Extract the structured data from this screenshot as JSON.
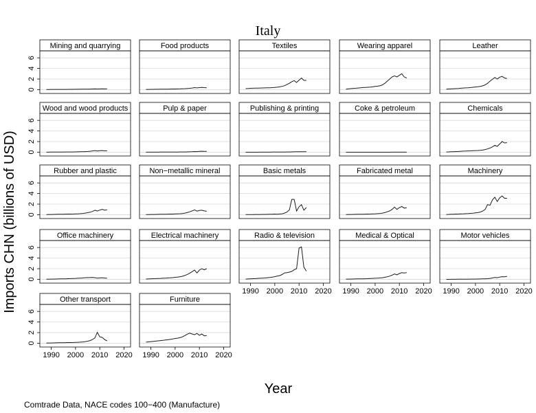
{
  "figure": {
    "title": "Italy",
    "ylabel": "Imports CHN (billions of USD)",
    "xlabel": "Year",
    "note": "Comtrade Data, NACE codes 100−400 (Manufacture)"
  },
  "chart_data": {
    "type": "line",
    "layout": "small-multiples",
    "title": "Italy",
    "xlabel": "Year",
    "ylabel": "Imports CHN (billions of USD)",
    "xlim": [
      1987,
      2021
    ],
    "ylim": [
      -0.2,
      6.8
    ],
    "xticks": [
      1990,
      2000,
      2010,
      2020
    ],
    "yticks": [
      0,
      2,
      4,
      6
    ],
    "grid": true,
    "x": [
      1988,
      1989,
      1990,
      1991,
      1992,
      1993,
      1994,
      1995,
      1996,
      1997,
      1998,
      1999,
      2000,
      2001,
      2002,
      2003,
      2004,
      2005,
      2006,
      2007,
      2008,
      2009,
      2010,
      2011,
      2012,
      2013
    ],
    "panels": [
      {
        "name": "Mining and quarrying",
        "values": [
          0.03,
          0.03,
          0.04,
          0.04,
          0.04,
          0.04,
          0.05,
          0.05,
          0.05,
          0.06,
          0.06,
          0.06,
          0.07,
          0.07,
          0.08,
          0.08,
          0.09,
          0.1,
          0.11,
          0.12,
          0.14,
          0.12,
          0.14,
          0.15,
          0.14,
          0.14
        ]
      },
      {
        "name": "Food products",
        "values": [
          0.05,
          0.05,
          0.06,
          0.06,
          0.07,
          0.07,
          0.08,
          0.09,
          0.09,
          0.1,
          0.11,
          0.12,
          0.13,
          0.14,
          0.15,
          0.17,
          0.19,
          0.22,
          0.26,
          0.3,
          0.38,
          0.33,
          0.38,
          0.42,
          0.38,
          0.36
        ]
      },
      {
        "name": "Textiles",
        "values": [
          0.2,
          0.22,
          0.25,
          0.27,
          0.28,
          0.28,
          0.3,
          0.32,
          0.33,
          0.35,
          0.36,
          0.38,
          0.42,
          0.46,
          0.52,
          0.62,
          0.75,
          0.95,
          1.2,
          1.5,
          1.7,
          1.35,
          1.8,
          2.2,
          1.75,
          1.75
        ]
      },
      {
        "name": "Wearing apparel",
        "values": [
          0.1,
          0.15,
          0.2,
          0.24,
          0.27,
          0.3,
          0.35,
          0.4,
          0.42,
          0.45,
          0.48,
          0.52,
          0.6,
          0.65,
          0.72,
          0.9,
          1.2,
          1.6,
          2.0,
          2.4,
          2.6,
          2.4,
          2.7,
          3.0,
          2.4,
          2.2
        ]
      },
      {
        "name": "Leather",
        "values": [
          0.1,
          0.12,
          0.15,
          0.18,
          0.2,
          0.23,
          0.27,
          0.3,
          0.33,
          0.36,
          0.4,
          0.45,
          0.5,
          0.55,
          0.62,
          0.72,
          0.9,
          1.2,
          1.6,
          1.95,
          2.3,
          2.0,
          2.35,
          2.5,
          2.2,
          2.1
        ]
      },
      {
        "name": "Wood and wood products",
        "values": [
          0.01,
          0.01,
          0.02,
          0.02,
          0.02,
          0.02,
          0.03,
          0.03,
          0.04,
          0.04,
          0.05,
          0.05,
          0.06,
          0.07,
          0.08,
          0.09,
          0.11,
          0.14,
          0.18,
          0.24,
          0.3,
          0.22,
          0.28,
          0.3,
          0.25,
          0.25
        ]
      },
      {
        "name": "Pulp & paper",
        "values": [
          0.01,
          0.01,
          0.01,
          0.01,
          0.01,
          0.01,
          0.02,
          0.02,
          0.02,
          0.02,
          0.02,
          0.03,
          0.03,
          0.03,
          0.04,
          0.04,
          0.05,
          0.06,
          0.07,
          0.09,
          0.12,
          0.11,
          0.15,
          0.17,
          0.15,
          0.15
        ]
      },
      {
        "name": "Publishing & printing",
        "values": [
          0.0,
          0.0,
          0.0,
          0.0,
          0.0,
          0.0,
          0.01,
          0.01,
          0.01,
          0.01,
          0.01,
          0.02,
          0.02,
          0.02,
          0.02,
          0.03,
          0.03,
          0.04,
          0.05,
          0.06,
          0.07,
          0.07,
          0.08,
          0.09,
          0.09,
          0.09
        ]
      },
      {
        "name": "Coke & petroleum",
        "values": [
          0.0,
          0.0,
          0.0,
          0.0,
          0.0,
          0.0,
          0.0,
          0.0,
          0.0,
          0.0,
          0.0,
          0.0,
          0.0,
          0.0,
          0.0,
          0.0,
          0.0,
          0.0,
          0.0,
          0.01,
          0.01,
          0.01,
          0.01,
          0.01,
          0.01,
          0.01
        ]
      },
      {
        "name": "Chemicals",
        "values": [
          0.05,
          0.06,
          0.08,
          0.1,
          0.12,
          0.14,
          0.17,
          0.2,
          0.22,
          0.24,
          0.26,
          0.28,
          0.3,
          0.32,
          0.35,
          0.4,
          0.5,
          0.62,
          0.78,
          1.0,
          1.3,
          1.1,
          1.55,
          2.0,
          1.75,
          1.8
        ]
      },
      {
        "name": "Rubber and plastic",
        "values": [
          0.03,
          0.04,
          0.05,
          0.06,
          0.07,
          0.08,
          0.09,
          0.1,
          0.11,
          0.12,
          0.13,
          0.14,
          0.16,
          0.18,
          0.2,
          0.24,
          0.3,
          0.38,
          0.48,
          0.62,
          0.85,
          0.7,
          0.88,
          1.0,
          0.85,
          0.92
        ]
      },
      {
        "name": "Non−metallic mineral",
        "values": [
          0.02,
          0.03,
          0.04,
          0.05,
          0.06,
          0.07,
          0.08,
          0.09,
          0.1,
          0.11,
          0.12,
          0.13,
          0.15,
          0.17,
          0.19,
          0.23,
          0.3,
          0.4,
          0.55,
          0.72,
          0.92,
          0.68,
          0.8,
          0.85,
          0.72,
          0.65
        ]
      },
      {
        "name": "Basic metals",
        "values": [
          0.02,
          0.02,
          0.03,
          0.03,
          0.04,
          0.04,
          0.05,
          0.06,
          0.06,
          0.07,
          0.08,
          0.09,
          0.12,
          0.1,
          0.14,
          0.18,
          0.3,
          0.5,
          0.9,
          2.9,
          2.9,
          0.7,
          1.5,
          1.9,
          0.85,
          1.35
        ]
      },
      {
        "name": "Fabricated metal",
        "values": [
          0.03,
          0.04,
          0.05,
          0.06,
          0.07,
          0.08,
          0.09,
          0.1,
          0.11,
          0.12,
          0.14,
          0.16,
          0.18,
          0.2,
          0.24,
          0.3,
          0.4,
          0.55,
          0.72,
          1.0,
          1.45,
          1.0,
          1.35,
          1.55,
          1.25,
          1.3
        ]
      },
      {
        "name": "Machinery",
        "values": [
          0.05,
          0.06,
          0.08,
          0.1,
          0.12,
          0.14,
          0.16,
          0.18,
          0.2,
          0.22,
          0.25,
          0.28,
          0.35,
          0.4,
          0.5,
          0.7,
          1.0,
          1.9,
          1.8,
          2.8,
          3.3,
          2.5,
          3.2,
          3.55,
          3.1,
          3.1
        ]
      },
      {
        "name": "Office machinery",
        "values": [
          0.02,
          0.03,
          0.04,
          0.05,
          0.06,
          0.07,
          0.08,
          0.09,
          0.1,
          0.12,
          0.14,
          0.16,
          0.18,
          0.2,
          0.23,
          0.26,
          0.3,
          0.32,
          0.33,
          0.34,
          0.3,
          0.22,
          0.26,
          0.28,
          0.24,
          0.2
        ]
      },
      {
        "name": "Electrical machinery",
        "values": [
          0.05,
          0.07,
          0.1,
          0.12,
          0.14,
          0.16,
          0.18,
          0.2,
          0.22,
          0.25,
          0.28,
          0.32,
          0.38,
          0.42,
          0.48,
          0.58,
          0.72,
          0.92,
          1.15,
          1.45,
          1.75,
          1.2,
          1.75,
          2.0,
          1.8,
          2.0
        ]
      },
      {
        "name": "Radio & television",
        "values": [
          0.05,
          0.07,
          0.1,
          0.12,
          0.14,
          0.17,
          0.2,
          0.23,
          0.26,
          0.3,
          0.35,
          0.42,
          0.5,
          0.6,
          0.7,
          0.9,
          1.2,
          1.25,
          1.35,
          1.5,
          1.8,
          2.0,
          5.9,
          6.1,
          2.3,
          1.55
        ]
      },
      {
        "name": "Medical & Optical",
        "values": [
          0.03,
          0.04,
          0.05,
          0.06,
          0.07,
          0.08,
          0.09,
          0.1,
          0.11,
          0.13,
          0.15,
          0.17,
          0.2,
          0.22,
          0.26,
          0.3,
          0.38,
          0.48,
          0.6,
          0.78,
          1.0,
          0.85,
          1.1,
          1.25,
          1.2,
          1.25
        ]
      },
      {
        "name": "Motor vehicles",
        "values": [
          0.0,
          0.0,
          0.01,
          0.01,
          0.01,
          0.02,
          0.02,
          0.02,
          0.03,
          0.03,
          0.04,
          0.04,
          0.05,
          0.06,
          0.07,
          0.08,
          0.1,
          0.13,
          0.18,
          0.25,
          0.35,
          0.3,
          0.42,
          0.5,
          0.48,
          0.55
        ]
      },
      {
        "name": "Other transport",
        "values": [
          0.03,
          0.04,
          0.05,
          0.06,
          0.07,
          0.08,
          0.09,
          0.1,
          0.11,
          0.12,
          0.13,
          0.14,
          0.16,
          0.18,
          0.2,
          0.24,
          0.3,
          0.38,
          0.5,
          0.7,
          1.0,
          2.05,
          1.2,
          1.1,
          0.7,
          0.45
        ]
      },
      {
        "name": "Furniture",
        "values": [
          0.2,
          0.25,
          0.3,
          0.35,
          0.4,
          0.45,
          0.5,
          0.55,
          0.6,
          0.65,
          0.72,
          0.8,
          0.9,
          0.95,
          1.05,
          1.2,
          1.45,
          1.7,
          1.9,
          1.75,
          1.6,
          1.85,
          1.5,
          1.75,
          1.4,
          1.45
        ]
      }
    ]
  }
}
